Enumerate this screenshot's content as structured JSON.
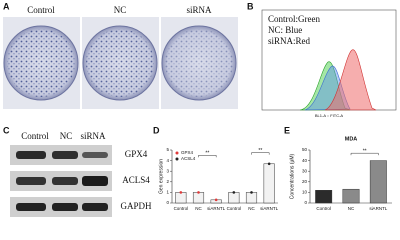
{
  "panel_labels": [
    "A",
    "B",
    "C",
    "D",
    "E"
  ],
  "panel_a": {
    "labels": [
      "Control",
      "NC",
      "siRNA"
    ]
  },
  "panel_b": {
    "legend": [
      "Control:Green",
      "NC: Blue",
      "siRNA:Red"
    ],
    "x_label": "BL1-A :: FITC-A"
  },
  "panel_c": {
    "columns": [
      "Control",
      "NC",
      "siRNA"
    ],
    "rows": [
      "GPX4",
      "ACLS4",
      "GAPDH"
    ]
  },
  "chart_data": [
    {
      "type": "bar",
      "y_label": "Gen expression",
      "categories": [
        "Control",
        "NC",
        "siARNTL",
        "Control",
        "NC",
        "siARNTL"
      ],
      "series": [
        {
          "name": "GPX4",
          "color": "#e03a3a",
          "values": [
            1,
            1,
            0.3,
            null,
            null,
            null
          ]
        },
        {
          "name": "ACSL4",
          "color": "#222222",
          "values": [
            null,
            null,
            null,
            1,
            1,
            3.7
          ]
        }
      ],
      "ylim": [
        0,
        5
      ],
      "yticks": [
        0,
        1,
        2,
        3,
        4,
        5
      ],
      "legend": "top-left",
      "annotations": [
        "**",
        "**"
      ]
    },
    {
      "type": "bar",
      "title": "MDA",
      "y_label": "Concentrations (μM)",
      "categories": [
        "Control",
        "NC",
        "siARNTL"
      ],
      "values": [
        12,
        13,
        40
      ],
      "colors": [
        "#2b2b2b",
        "#8a8a8a",
        "#8a8a8a"
      ],
      "ylim": [
        0,
        50
      ],
      "yticks": [
        0,
        10,
        20,
        30,
        40,
        50
      ],
      "annotations": [
        "**"
      ]
    }
  ]
}
